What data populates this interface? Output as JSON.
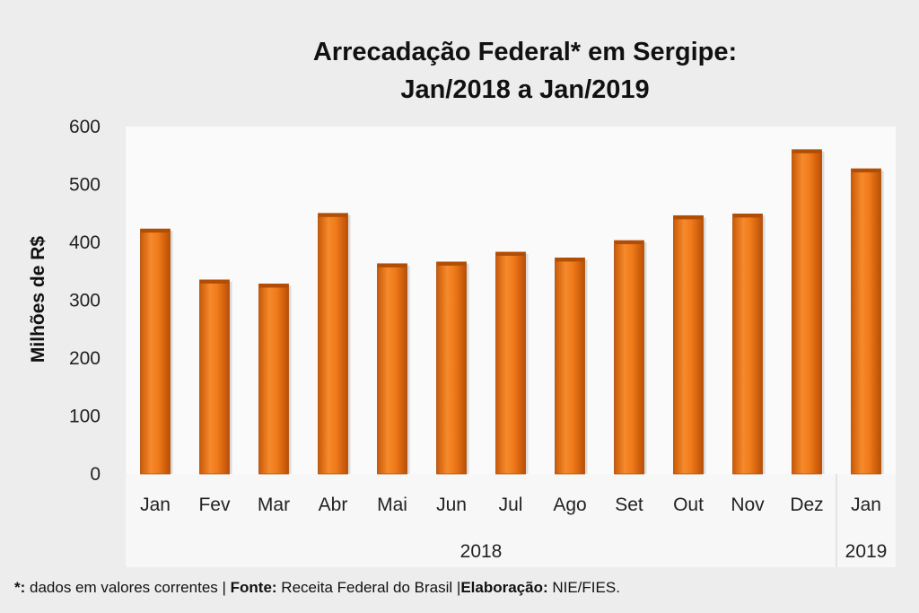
{
  "chart_data": {
    "type": "bar",
    "title": [
      "Arrecadação Federal* em Sergipe:",
      "Jan/2018 a Jan/2019"
    ],
    "ylabel": "Milhões de R$",
    "xlabel": "",
    "ylim": [
      0,
      600
    ],
    "yticks": [
      0,
      100,
      200,
      300,
      400,
      500,
      600
    ],
    "categories": [
      "Jan",
      "Fev",
      "Mar",
      "Abr",
      "Mai",
      "Jun",
      "Jul",
      "Ago",
      "Set",
      "Out",
      "Nov",
      "Dez",
      "Jan"
    ],
    "values": [
      423,
      335,
      328,
      450,
      363,
      366,
      383,
      373,
      403,
      446,
      449,
      560,
      527
    ],
    "year_groups": [
      {
        "label": "2018",
        "count": 12
      },
      {
        "label": "2019",
        "count": 1
      }
    ],
    "bar_color": "#f07a1a",
    "grid": false,
    "legend": "none"
  },
  "footnote": {
    "star_label": "*:",
    "star_text": " dados em valores correntes | ",
    "source_label": "Fonte:",
    "source_text": " Receita Federal do Brasil |",
    "credit_label": "Elaboração:",
    "credit_text": " NIE/FIES."
  }
}
